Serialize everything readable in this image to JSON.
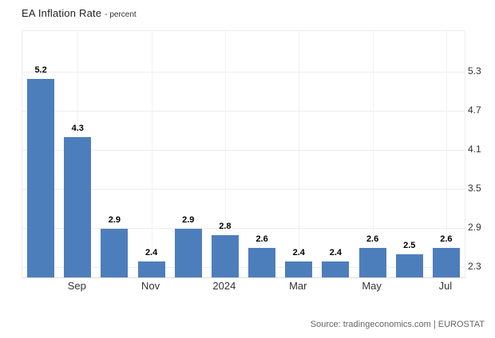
{
  "header": {
    "title": "EA Inflation Rate",
    "subtitle": "- percent"
  },
  "footer": {
    "source": "Source: tradingeconomics.com | EUROSTAT"
  },
  "colors": {
    "bar": "#4d7ebc",
    "grid": "#ededed",
    "axis_line": "#dedede",
    "axis_text": "#333333",
    "title_text": "#222222",
    "source_text": "#666666",
    "bar_label_text": "#000000",
    "background": "#ffffff"
  },
  "chart_data": {
    "type": "bar",
    "title": "EA Inflation Rate",
    "subtitle": "percent",
    "categories": [
      "",
      "Sep",
      "",
      "Nov",
      "",
      "2024",
      "",
      "Mar",
      "",
      "May",
      "",
      "Jul"
    ],
    "values": [
      5.2,
      4.3,
      2.9,
      2.4,
      2.9,
      2.8,
      2.6,
      2.4,
      2.4,
      2.6,
      2.5,
      2.6
    ],
    "bar_labels": [
      "5.2",
      "4.3",
      "2.9",
      "2.4",
      "2.9",
      "2.8",
      "2.6",
      "2.4",
      "2.4",
      "2.6",
      "2.5",
      "2.6"
    ],
    "x_tick_labels": [
      "Sep",
      "Nov",
      "2024",
      "Mar",
      "May",
      "Jul"
    ],
    "x_tick_slots": [
      1,
      3,
      5,
      7,
      9,
      11
    ],
    "y_ticks": [
      2.3,
      2.9,
      3.5,
      4.1,
      4.7,
      5.3
    ],
    "ylim": [
      2.15,
      5.93
    ],
    "xlabel": "",
    "ylabel": "percent",
    "grid": true,
    "legend": false,
    "source": "Source: tradingeconomics.com | EUROSTAT"
  }
}
